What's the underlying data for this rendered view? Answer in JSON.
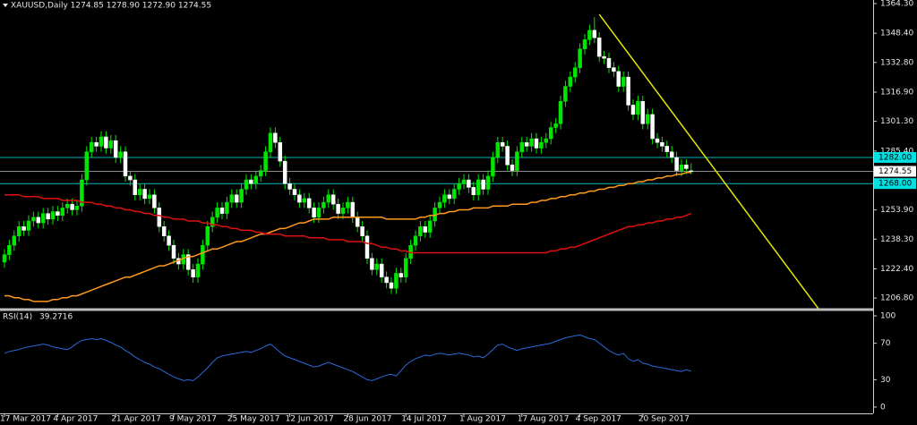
{
  "chart_data": {
    "type": "candlestick",
    "header": "XAUUSD,Daily  1274.85 1278.90 1272.90 1274.55",
    "up_color": "#00e600",
    "down_color": "#ffffff",
    "wick_color": "#00e600",
    "categories": [
      "17 Mar 2017",
      null,
      null,
      null,
      null,
      null,
      null,
      null,
      null,
      null,
      null,
      "4 Apr 2017",
      null,
      null,
      null,
      null,
      null,
      null,
      null,
      null,
      null,
      null,
      null,
      "21 Apr 2017",
      null,
      null,
      null,
      null,
      null,
      null,
      null,
      null,
      null,
      null,
      null,
      "9 May 2017",
      null,
      null,
      null,
      null,
      null,
      null,
      null,
      null,
      null,
      null,
      null,
      "25 May 2017",
      null,
      null,
      null,
      null,
      null,
      null,
      null,
      null,
      null,
      null,
      null,
      "12 Jun 2017",
      null,
      null,
      null,
      null,
      null,
      null,
      null,
      null,
      null,
      null,
      null,
      "28 Jun 2017",
      null,
      null,
      null,
      null,
      null,
      null,
      null,
      null,
      null,
      null,
      null,
      "14 Jul 2017",
      null,
      null,
      null,
      null,
      null,
      null,
      null,
      null,
      null,
      null,
      null,
      "1 Aug 2017",
      null,
      null,
      null,
      null,
      null,
      null,
      null,
      null,
      null,
      null,
      null,
      "17 Aug 2017",
      null,
      null,
      null,
      null,
      null,
      null,
      null,
      null,
      null,
      null,
      null,
      "4 Sep 2017",
      null,
      null,
      null,
      null,
      null,
      null,
      null,
      null,
      null,
      null,
      null,
      null,
      "20 Sep 2017",
      null,
      null,
      null,
      null,
      null,
      null,
      null,
      null,
      null,
      null
    ],
    "open": [
      1226,
      1230,
      1235,
      1240,
      1245,
      1243,
      1248,
      1250,
      1247,
      1252,
      1249,
      1253,
      1251,
      1255,
      1257,
      1254,
      1256,
      1270,
      1285,
      1290,
      1288,
      1293,
      1287,
      1291,
      1282,
      1285,
      1272,
      1270,
      1262,
      1265,
      1260,
      1262,
      1255,
      1245,
      1240,
      1235,
      1228,
      1225,
      1230,
      1222,
      1218,
      1225,
      1235,
      1245,
      1250,
      1255,
      1252,
      1258,
      1262,
      1258,
      1265,
      1270,
      1268,
      1272,
      1275,
      1285,
      1295,
      1290,
      1280,
      1268,
      1265,
      1262,
      1258,
      1260,
      1255,
      1250,
      1255,
      1258,
      1262,
      1257,
      1252,
      1255,
      1258,
      1250,
      1245,
      1240,
      1228,
      1222,
      1225,
      1218,
      1215,
      1212,
      1220,
      1218,
      1228,
      1235,
      1240,
      1245,
      1242,
      1248,
      1255,
      1258,
      1262,
      1260,
      1265,
      1268,
      1270,
      1266,
      1262,
      1270,
      1265,
      1272,
      1282,
      1290,
      1288,
      1278,
      1275,
      1285,
      1290,
      1288,
      1292,
      1287,
      1290,
      1292,
      1298,
      1300,
      1312,
      1320,
      1325,
      1330,
      1340,
      1345,
      1350,
      1346,
      1336,
      1335,
      1330,
      1328,
      1320,
      1325,
      1310,
      1305,
      1312,
      1300,
      1305,
      1292,
      1290,
      1288,
      1285,
      1282,
      1275,
      1278,
      1274.85
    ],
    "high": [
      1233,
      1238,
      1243,
      1248,
      1248,
      1251,
      1253,
      1253,
      1255,
      1255,
      1256,
      1256,
      1258,
      1260,
      1260,
      1259,
      1273,
      1288,
      1293,
      1293,
      1296,
      1296,
      1294,
      1294,
      1288,
      1288,
      1275,
      1273,
      1268,
      1268,
      1265,
      1265,
      1258,
      1248,
      1243,
      1238,
      1231,
      1233,
      1233,
      1225,
      1228,
      1238,
      1248,
      1253,
      1258,
      1258,
      1261,
      1265,
      1265,
      1268,
      1273,
      1273,
      1275,
      1278,
      1288,
      1298,
      1298,
      1293,
      1283,
      1271,
      1268,
      1265,
      1263,
      1263,
      1258,
      1258,
      1261,
      1265,
      1265,
      1260,
      1258,
      1261,
      1261,
      1253,
      1248,
      1243,
      1231,
      1228,
      1228,
      1221,
      1218,
      1223,
      1223,
      1231,
      1238,
      1243,
      1248,
      1248,
      1251,
      1258,
      1261,
      1265,
      1265,
      1268,
      1271,
      1273,
      1273,
      1269,
      1273,
      1273,
      1275,
      1285,
      1293,
      1293,
      1291,
      1281,
      1288,
      1293,
      1293,
      1295,
      1295,
      1293,
      1295,
      1301,
      1303,
      1315,
      1323,
      1328,
      1333,
      1343,
      1348,
      1353,
      1357,
      1349,
      1339,
      1338,
      1333,
      1331,
      1328,
      1328,
      1313,
      1315,
      1315,
      1308,
      1308,
      1295,
      1293,
      1291,
      1288,
      1285,
      1281,
      1281,
      1278.9
    ],
    "low": [
      1223,
      1227,
      1232,
      1237,
      1240,
      1240,
      1245,
      1244,
      1244,
      1246,
      1246,
      1248,
      1248,
      1252,
      1251,
      1251,
      1253,
      1267,
      1282,
      1285,
      1285,
      1284,
      1284,
      1279,
      1279,
      1269,
      1267,
      1259,
      1259,
      1257,
      1257,
      1252,
      1242,
      1237,
      1232,
      1225,
      1222,
      1222,
      1219,
      1215,
      1215,
      1222,
      1232,
      1242,
      1247,
      1249,
      1249,
      1255,
      1255,
      1255,
      1262,
      1265,
      1265,
      1269,
      1272,
      1282,
      1287,
      1277,
      1265,
      1262,
      1259,
      1255,
      1255,
      1252,
      1247,
      1247,
      1252,
      1255,
      1254,
      1249,
      1249,
      1252,
      1247,
      1242,
      1237,
      1225,
      1219,
      1219,
      1215,
      1212,
      1209,
      1209,
      1215,
      1215,
      1225,
      1232,
      1237,
      1239,
      1239,
      1245,
      1252,
      1255,
      1257,
      1257,
      1262,
      1265,
      1263,
      1259,
      1259,
      1262,
      1262,
      1269,
      1279,
      1285,
      1275,
      1272,
      1272,
      1282,
      1285,
      1285,
      1284,
      1284,
      1287,
      1289,
      1295,
      1297,
      1309,
      1317,
      1322,
      1327,
      1337,
      1342,
      1343,
      1333,
      1332,
      1327,
      1325,
      1317,
      1317,
      1307,
      1302,
      1302,
      1297,
      1297,
      1289,
      1287,
      1285,
      1282,
      1279,
      1272,
      1272,
      1273,
      1272.9
    ],
    "close": [
      1230,
      1235,
      1240,
      1245,
      1243,
      1248,
      1250,
      1247,
      1252,
      1249,
      1253,
      1251,
      1255,
      1257,
      1254,
      1256,
      1270,
      1285,
      1290,
      1288,
      1293,
      1287,
      1291,
      1282,
      1285,
      1272,
      1270,
      1262,
      1265,
      1260,
      1262,
      1255,
      1245,
      1240,
      1235,
      1228,
      1225,
      1230,
      1222,
      1218,
      1225,
      1235,
      1245,
      1250,
      1255,
      1252,
      1258,
      1262,
      1258,
      1265,
      1270,
      1268,
      1272,
      1275,
      1285,
      1295,
      1290,
      1280,
      1268,
      1265,
      1262,
      1258,
      1260,
      1255,
      1250,
      1255,
      1258,
      1262,
      1257,
      1252,
      1255,
      1258,
      1250,
      1245,
      1240,
      1228,
      1222,
      1225,
      1218,
      1215,
      1212,
      1220,
      1218,
      1228,
      1235,
      1240,
      1245,
      1242,
      1248,
      1255,
      1258,
      1262,
      1260,
      1265,
      1268,
      1270,
      1266,
      1262,
      1270,
      1265,
      1272,
      1282,
      1290,
      1288,
      1278,
      1275,
      1285,
      1290,
      1288,
      1292,
      1287,
      1290,
      1292,
      1298,
      1300,
      1312,
      1320,
      1325,
      1330,
      1340,
      1345,
      1350,
      1346,
      1336,
      1335,
      1330,
      1328,
      1320,
      1325,
      1310,
      1305,
      1312,
      1300,
      1305,
      1292,
      1290,
      1288,
      1285,
      1282,
      1275,
      1278,
      1276,
      1274.55
    ],
    "series": [
      {
        "color": "#ff9a1a",
        "values": [
          1208,
          1208,
          1207,
          1207,
          1206,
          1206,
          1205,
          1205,
          1205,
          1205,
          1206,
          1206,
          1207,
          1207,
          1208,
          1208,
          1209,
          1210,
          1211,
          1212,
          1213,
          1214,
          1215,
          1216,
          1217,
          1218,
          1218,
          1219,
          1220,
          1221,
          1222,
          1223,
          1224,
          1224,
          1225,
          1226,
          1227,
          1228,
          1229,
          1229,
          1230,
          1231,
          1232,
          1233,
          1233,
          1234,
          1235,
          1236,
          1237,
          1237,
          1238,
          1239,
          1240,
          1241,
          1241,
          1242,
          1243,
          1244,
          1244,
          1245,
          1246,
          1247,
          1247,
          1248,
          1249,
          1249,
          1249,
          1249,
          1250,
          1250,
          1250,
          1250,
          1250,
          1250,
          1250,
          1250,
          1250,
          1250,
          1250,
          1249,
          1249,
          1249,
          1249,
          1249,
          1249,
          1249,
          1250,
          1250,
          1251,
          1251,
          1252,
          1252,
          1253,
          1253,
          1254,
          1254,
          1254,
          1255,
          1255,
          1255,
          1255,
          1256,
          1256,
          1256,
          1256,
          1257,
          1257,
          1257,
          1257,
          1258,
          1258,
          1259,
          1259,
          1260,
          1260,
          1261,
          1261,
          1262,
          1262,
          1263,
          1263,
          1264,
          1264,
          1265,
          1265,
          1266,
          1266,
          1267,
          1267,
          1268,
          1268,
          1269,
          1269,
          1270,
          1270,
          1271,
          1271,
          1272,
          1272,
          1273,
          1273,
          1274,
          1274
        ]
      },
      {
        "color": "#e01010",
        "values": [
          1262,
          1262,
          1262,
          1262,
          1261,
          1261,
          1261,
          1261,
          1260,
          1260,
          1260,
          1260,
          1259,
          1259,
          1259,
          1259,
          1258,
          1258,
          1258,
          1257,
          1257,
          1256,
          1256,
          1255,
          1255,
          1254,
          1254,
          1253,
          1253,
          1252,
          1252,
          1251,
          1251,
          1250,
          1250,
          1249,
          1249,
          1249,
          1248,
          1248,
          1248,
          1247,
          1247,
          1246,
          1246,
          1245,
          1245,
          1244,
          1244,
          1243,
          1243,
          1243,
          1242,
          1242,
          1241,
          1241,
          1241,
          1241,
          1240,
          1240,
          1240,
          1240,
          1240,
          1239,
          1239,
          1239,
          1239,
          1238,
          1238,
          1238,
          1238,
          1237,
          1237,
          1237,
          1237,
          1236,
          1236,
          1235,
          1234,
          1234,
          1233,
          1233,
          1232,
          1232,
          1231,
          1231,
          1231,
          1231,
          1231,
          1231,
          1231,
          1231,
          1231,
          1231,
          1231,
          1231,
          1231,
          1231,
          1231,
          1231,
          1231,
          1231,
          1231,
          1231,
          1231,
          1231,
          1231,
          1231,
          1231,
          1231,
          1231,
          1231,
          1231,
          1232,
          1232,
          1233,
          1233,
          1234,
          1234,
          1235,
          1236,
          1237,
          1238,
          1239,
          1240,
          1241,
          1242,
          1243,
          1244,
          1245,
          1245,
          1246,
          1246,
          1247,
          1247,
          1248,
          1248,
          1249,
          1249,
          1250,
          1250,
          1251,
          1252
        ]
      }
    ],
    "trendline": {
      "color": "#e6e600",
      "x": [
        123,
        168.5
      ],
      "values": [
        1358.5,
        1200.5
      ]
    },
    "hlines": [
      {
        "value": 1282,
        "label": "1282.00",
        "color": "#00b8b8",
        "tag_color": "#00e0e0"
      },
      {
        "value": 1274.55,
        "label": "1274.55",
        "color": "#8a8a8a",
        "tag_color": "#ffffff"
      },
      {
        "value": 1268,
        "label": "1268.00",
        "color": "#00b8b8",
        "tag_color": "#00e0e0"
      }
    ],
    "ylim": [
      1201.1,
      1366.2
    ],
    "yticks": [
      {
        "value": 1364.3,
        "label": "1364.30"
      },
      {
        "value": 1348.4,
        "label": "1348.40"
      },
      {
        "value": 1332.8,
        "label": "1332.80"
      },
      {
        "value": 1316.9,
        "label": "1316.90"
      },
      {
        "value": 1301.3,
        "label": "1301.30"
      },
      {
        "value": 1285.4,
        "label": "1285.40"
      },
      {
        "value": 1253.9,
        "label": "1253.90"
      },
      {
        "value": 1238.3,
        "label": "1238.30"
      },
      {
        "value": 1222.4,
        "label": "1222.40"
      },
      {
        "value": 1206.8,
        "label": "1206.80"
      }
    ],
    "rsi": {
      "name": "RSI(14)",
      "color": "#2a6ad8",
      "values": [
        59,
        61,
        62,
        63,
        65,
        66,
        67,
        68,
        69,
        68,
        66,
        65,
        64,
        63,
        66,
        70,
        73,
        74,
        75,
        74,
        75,
        73,
        71,
        68,
        66,
        62,
        59,
        55,
        52,
        49,
        47,
        44,
        42,
        39,
        36,
        33,
        31,
        29,
        30,
        29,
        33,
        38,
        43,
        49,
        54,
        56,
        57,
        58,
        59,
        60,
        61,
        60,
        62,
        64,
        67,
        69,
        65,
        60,
        56,
        54,
        52,
        50,
        48,
        46,
        44,
        45,
        47,
        49,
        47,
        45,
        43,
        41,
        39,
        36,
        33,
        30,
        29,
        31,
        33,
        35,
        36,
        34,
        40,
        46,
        50,
        53,
        55,
        57,
        56,
        58,
        59,
        58,
        57,
        58,
        59,
        58,
        57,
        55,
        56,
        54,
        58,
        63,
        68,
        69,
        66,
        64,
        62,
        64,
        65,
        66,
        67,
        68,
        69,
        70,
        72,
        74,
        76,
        77,
        78,
        79,
        77,
        75,
        74,
        70,
        66,
        62,
        59,
        57,
        59,
        53,
        50,
        52,
        48,
        47,
        45,
        44,
        43,
        42,
        41,
        40,
        39,
        41,
        39.2716
      ],
      "ylim": [
        -6.9,
        104.9
      ],
      "yticks": [
        100,
        70,
        30,
        0
      ]
    }
  }
}
